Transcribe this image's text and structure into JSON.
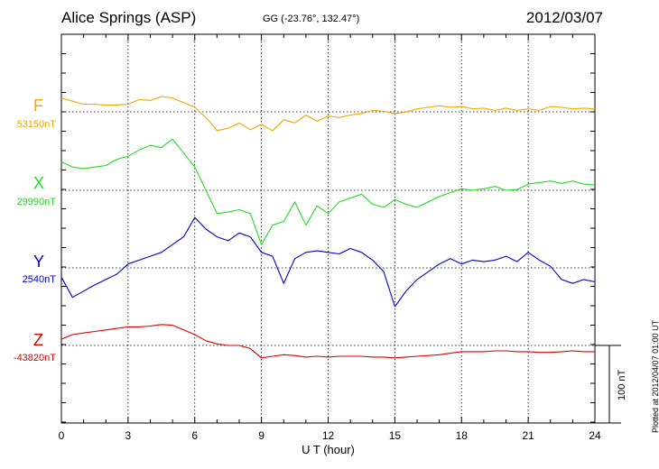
{
  "header": {
    "station": "Alice Springs (ASP)",
    "coords": "GG (-23.76°, 132.47°)",
    "date": "2012/03/07"
  },
  "plotted_note": "Plotted at 2012/04/07 01:00 UT",
  "scale_label": "100 nT",
  "chart_data": {
    "type": "line",
    "xlabel": "U T (hour)",
    "xlim": [
      0,
      24
    ],
    "xticks": [
      "0",
      "3",
      "6",
      "9",
      "12",
      "15",
      "18",
      "21",
      "24"
    ],
    "grid": true,
    "y_units": "nT",
    "series": [
      {
        "name": "F",
        "baseline": "53150nT",
        "color": "#f2a900",
        "x": [
          0,
          0.5,
          1,
          1.5,
          2,
          2.5,
          3,
          3.5,
          4,
          4.5,
          5,
          5.5,
          6,
          6.3,
          6.6,
          7,
          7.5,
          8,
          8.5,
          9,
          9.5,
          10,
          10.5,
          11,
          11.5,
          12,
          12.5,
          13,
          13.5,
          14,
          14.5,
          15,
          15.5,
          16,
          16.5,
          17,
          17.5,
          18,
          18.5,
          19,
          19.5,
          20,
          20.5,
          21,
          21.5,
          22,
          22.5,
          23,
          23.5,
          24
        ],
        "values": [
          12,
          8,
          4,
          4,
          3,
          3,
          4,
          10,
          9,
          14,
          12,
          6,
          0,
          -8,
          -16,
          -30,
          -27,
          -20,
          -29,
          -22,
          -30,
          -16,
          -20,
          -10,
          -18,
          -11,
          -13,
          -10,
          -8,
          -4,
          -5,
          -8,
          -6,
          -2,
          0,
          2,
          0,
          1,
          -2,
          -1,
          -4,
          -1,
          -4,
          -2,
          -4,
          1,
          0,
          -2,
          -1,
          -2
        ]
      },
      {
        "name": "X",
        "baseline": "29990nT",
        "color": "#22dd22",
        "x": [
          0,
          0.5,
          1,
          1.5,
          2,
          2.5,
          3,
          3.5,
          4,
          4.5,
          5,
          5.5,
          6,
          6.5,
          7,
          7.5,
          8,
          8.5,
          9,
          9.5,
          10,
          10.5,
          11,
          11.5,
          12,
          12.5,
          13,
          13.5,
          14,
          14.5,
          15,
          15.5,
          16,
          16.5,
          17,
          17.5,
          18,
          18.5,
          19,
          19.5,
          20,
          20.5,
          21,
          21.5,
          22,
          22.5,
          23,
          23.5,
          24
        ],
        "values": [
          37,
          30,
          28,
          30,
          32,
          40,
          44,
          52,
          58,
          55,
          66,
          48,
          30,
          0,
          -30,
          -28,
          -25,
          -30,
          -70,
          -45,
          -40,
          -15,
          -45,
          -20,
          -30,
          -15,
          -10,
          -5,
          -18,
          -22,
          -12,
          -18,
          -22,
          -15,
          -8,
          -3,
          2,
          0,
          2,
          5,
          0,
          1,
          8,
          10,
          12,
          9,
          12,
          8,
          7
        ]
      },
      {
        "name": "Y",
        "baseline": "2540nT",
        "color": "#0000cc",
        "x": [
          0,
          0.5,
          1,
          1.5,
          2,
          2.5,
          3,
          3.5,
          4,
          4.5,
          5,
          5.5,
          6,
          6.5,
          7,
          7.5,
          8,
          8.5,
          9,
          9.5,
          10,
          10.5,
          11,
          11.5,
          12,
          12.5,
          13,
          13.5,
          14,
          14.5,
          15,
          15.5,
          16,
          16.5,
          17,
          17.5,
          18,
          18.5,
          19,
          19.5,
          20,
          20.5,
          21,
          21.5,
          22,
          22.5,
          23,
          23.5,
          24
        ],
        "values": [
          -12,
          -38,
          -30,
          -22,
          -15,
          -8,
          5,
          10,
          15,
          20,
          30,
          40,
          65,
          50,
          40,
          35,
          45,
          40,
          20,
          15,
          -20,
          12,
          20,
          22,
          20,
          18,
          25,
          20,
          10,
          -5,
          -50,
          -30,
          -15,
          -5,
          5,
          12,
          5,
          10,
          8,
          10,
          15,
          8,
          20,
          10,
          2,
          -15,
          -20,
          -15,
          -18
        ]
      },
      {
        "name": "Z",
        "baseline": "-43820nT",
        "color": "#dd0000",
        "x": [
          0,
          0.5,
          1,
          1.5,
          2,
          2.5,
          3,
          3.5,
          4,
          4.5,
          5,
          5.5,
          6,
          6.5,
          7,
          7.5,
          8,
          8.5,
          9,
          9.5,
          10,
          10.5,
          11,
          11.5,
          12,
          12.5,
          13,
          13.5,
          14,
          14.5,
          15,
          15.5,
          16,
          16.5,
          17,
          17.5,
          18,
          18.5,
          19,
          19.5,
          20,
          20.5,
          21,
          21.5,
          22,
          22.5,
          23,
          23.5,
          24
        ],
        "values": [
          8,
          14,
          16,
          18,
          20,
          22,
          24,
          24,
          25,
          27,
          26,
          20,
          14,
          6,
          2,
          0,
          0,
          -4,
          -16,
          -14,
          -12,
          -13,
          -15,
          -14,
          -15,
          -14,
          -14,
          -14,
          -15,
          -15,
          -16,
          -15,
          -14,
          -13,
          -12,
          -10,
          -8,
          -8,
          -8,
          -7,
          -7,
          -8,
          -8,
          -9,
          -9,
          -8,
          -7,
          -8,
          -8
        ]
      }
    ]
  }
}
